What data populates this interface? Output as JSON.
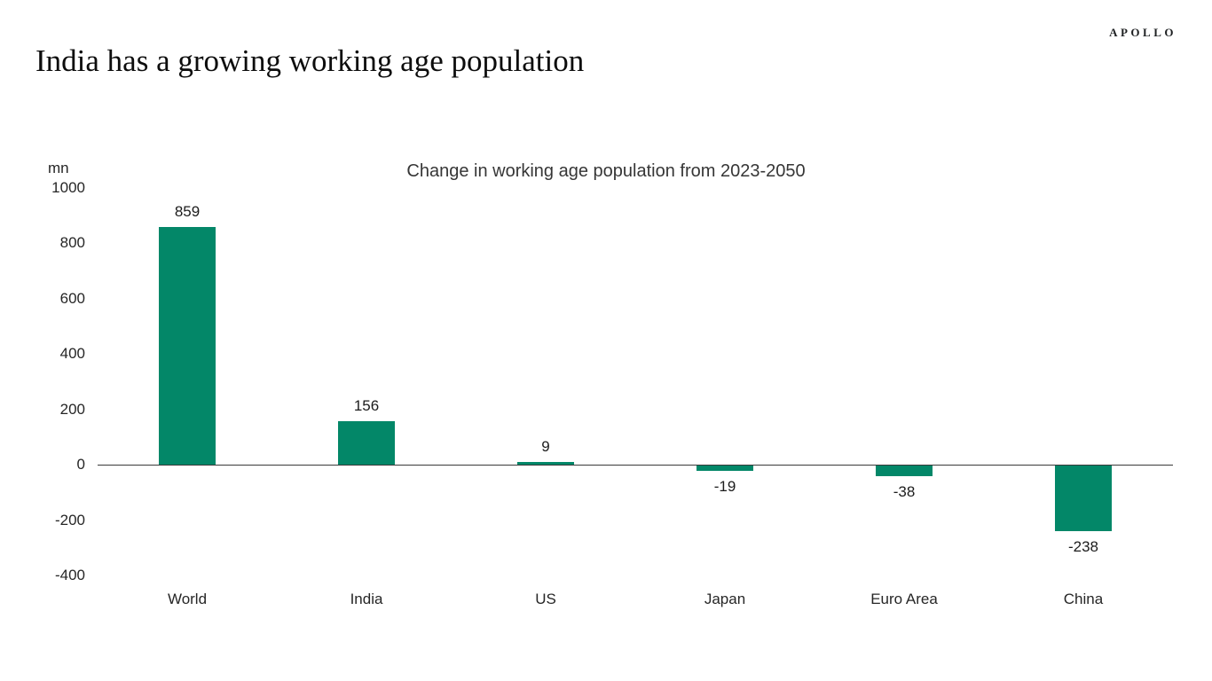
{
  "page": {
    "brand": "APOLLO",
    "title": "India has a growing working age population"
  },
  "chart_data": {
    "type": "bar",
    "title": "Change in working age population from 2023-2050",
    "unit_label": "mn",
    "categories": [
      "World",
      "India",
      "US",
      "Japan",
      "Euro Area",
      "China"
    ],
    "values": [
      859,
      156,
      9,
      -19,
      -38,
      -238
    ],
    "value_labels": [
      "859",
      "156",
      "9",
      "-19",
      "-38",
      "-238"
    ],
    "ytick_labels": [
      "1000",
      "800",
      "600",
      "400",
      "200",
      "0",
      "-200",
      "-400"
    ],
    "yticks": [
      1000,
      800,
      600,
      400,
      200,
      0,
      -200,
      -400
    ],
    "ylim": [
      -400,
      1000
    ],
    "grid": false,
    "legend": false,
    "bar_color": "#038768",
    "axis_color": "#3a3a3a",
    "text_color": "#262626"
  }
}
